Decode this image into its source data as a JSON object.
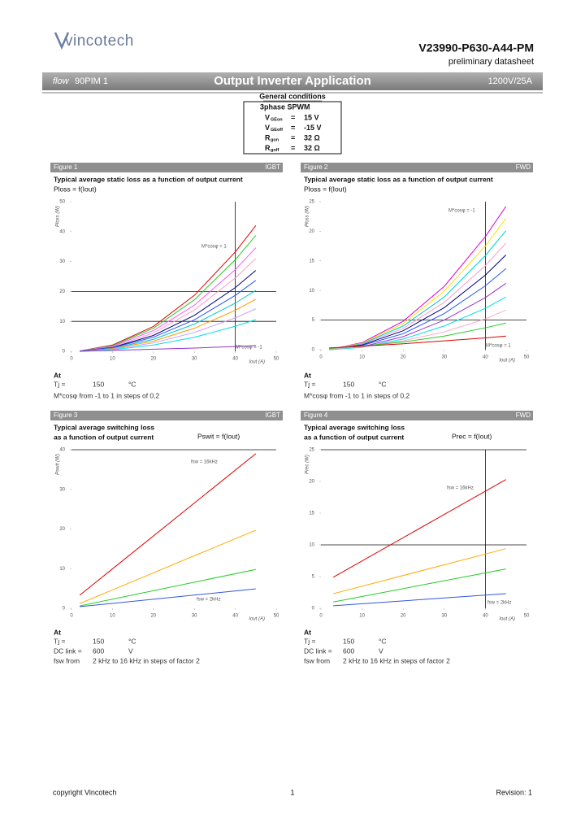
{
  "header": {
    "logo": "vincotech",
    "part_number": "V23990-P630-A44-PM",
    "doc_type": "preliminary datasheet"
  },
  "banner": {
    "family_italic": "flow",
    "family": "90PIM 1",
    "title": "Output Inverter Application",
    "rating": "1200V/25A"
  },
  "conditions": {
    "title": "General conditions",
    "mode": "3phase SPWM",
    "rows": [
      {
        "symbol": "V",
        "sub": "GEon",
        "eq": "=",
        "value": "15 V"
      },
      {
        "symbol": "V",
        "sub": "GEoff",
        "eq": "=",
        "value": "-15 V"
      },
      {
        "symbol": "R",
        "sub": "gon",
        "eq": "=",
        "value": "32 Ω"
      },
      {
        "symbol": "R",
        "sub": "goff",
        "eq": "=",
        "value": "32 Ω"
      }
    ]
  },
  "figures": [
    {
      "label": "Figure 1",
      "device": "IGBT",
      "title": [
        "Typical average static loss as a function of output current"
      ],
      "formula": "Ploss = f(Iout)",
      "chart": {
        "type": "line",
        "ylabel": "Ploss (W)",
        "xlabel": "Iout (A)",
        "xlim": [
          0,
          50
        ],
        "xticks": [
          0,
          10,
          20,
          30,
          40,
          50
        ],
        "ylim": [
          0,
          50
        ],
        "yticks": [
          0,
          10,
          20,
          30,
          40,
          50
        ],
        "vlines": [
          40
        ],
        "hlines": [
          10,
          20
        ],
        "x": [
          2,
          10,
          20,
          30,
          40,
          45
        ],
        "series": [
          {
            "color": "#e00000",
            "values": [
              0.1,
              2.1,
              8.3,
              18.7,
              33.2,
              42
            ]
          },
          {
            "color": "#22cc22",
            "values": [
              0.1,
              1.9,
              7.7,
              17.2,
              30.6,
              38.7
            ]
          },
          {
            "color": "#ff55ff",
            "values": [
              0.1,
              1.7,
              6.9,
              15.4,
              27.3,
              34.6
            ]
          },
          {
            "color": "#ff99cc",
            "values": [
              0.1,
              1.5,
              6.1,
              13.8,
              24.5,
              31
            ]
          },
          {
            "color": "#000080",
            "values": [
              0.1,
              1.3,
              5.3,
              12,
              21.3,
              27
            ]
          },
          {
            "color": "#2255ff",
            "values": [
              0,
              1.2,
              4.7,
              10.5,
              18.7,
              23.7
            ]
          },
          {
            "color": "#00c8c8",
            "values": [
              0,
              1,
              4,
              9.1,
              16.1,
              20.4
            ]
          },
          {
            "color": "#ff9900",
            "values": [
              0,
              0.9,
              3.4,
              7.7,
              13.7,
              17.4
            ]
          },
          {
            "color": "#cc99ff",
            "values": [
              0,
              0.7,
              2.8,
              6.3,
              11.2,
              14.2
            ]
          },
          {
            "color": "#00e0e0",
            "values": [
              0,
              0.5,
              2.1,
              4.7,
              8.4,
              10.6
            ]
          },
          {
            "color": "#9933cc",
            "values": [
              0,
              0.3,
              0.7,
              1.1,
              1.6,
              1.9
            ]
          }
        ],
        "annotations": [
          "M*cosφ = 1",
          "M*cosφ = -1"
        ]
      },
      "at": {
        "title": "At",
        "rows": [
          [
            "Tj =",
            "150",
            "°C"
          ]
        ],
        "note": "M*cosφ from -1 to 1 in steps of 0,2"
      }
    },
    {
      "label": "Figure 2",
      "device": "FWD",
      "title": [
        "Typical average static loss as a function of output current"
      ],
      "formula": "Ploss = f(Iout)",
      "chart": {
        "type": "line",
        "ylabel": "Ploss (W)",
        "xlabel": "Iout (A)",
        "xlim": [
          0,
          50
        ],
        "xticks": [
          0,
          10,
          20,
          30,
          40,
          50
        ],
        "ylim": [
          0,
          25
        ],
        "yticks": [
          0,
          5,
          10,
          15,
          20,
          25
        ],
        "vlines": [
          40
        ],
        "hlines": [
          5
        ],
        "x": [
          2,
          10,
          20,
          30,
          40,
          45
        ],
        "series": [
          {
            "color": "#dd00dd",
            "values": [
              0,
              1.2,
              4.8,
              10.7,
              19.1,
              24.2
            ]
          },
          {
            "color": "#ffdd00",
            "values": [
              0,
              1.1,
              4.4,
              9.9,
              17.5,
              22.2
            ]
          },
          {
            "color": "#00cccc",
            "values": [
              0,
              1,
              4,
              8.9,
              15.9,
              20.1
            ]
          },
          {
            "color": "#ff99cc",
            "values": [
              0,
              0.9,
              3.6,
              8,
              14.2,
              18
            ]
          },
          {
            "color": "#000080",
            "values": [
              0,
              0.8,
              3.2,
              7.1,
              12.6,
              16
            ]
          },
          {
            "color": "#2255ff",
            "values": [
              0,
              0.7,
              2.7,
              6.1,
              10.8,
              13.7
            ]
          },
          {
            "color": "#9933cc",
            "values": [
              0,
              0.5,
              2.2,
              5,
              8.8,
              11.2
            ]
          },
          {
            "color": "#00e0e0",
            "values": [
              0,
              0.4,
              1.8,
              4,
              7,
              8.9
            ]
          },
          {
            "color": "#ffaacc",
            "values": [
              0.1,
              0.5,
              1.5,
              3,
              5.2,
              6.7
            ]
          },
          {
            "color": "#22cc22",
            "values": [
              0.2,
              0.6,
              1.3,
              2.3,
              3.7,
              4.5
            ]
          },
          {
            "color": "#e00000",
            "values": [
              0.3,
              0.6,
              1,
              1.5,
              2,
              2.3
            ]
          }
        ],
        "annotations": [
          "M*cosφ = -1",
          "M*cosφ = 1"
        ]
      },
      "at": {
        "title": "At",
        "rows": [
          [
            "Tj =",
            "150",
            "°C"
          ]
        ],
        "note": "M*cosφ from -1 to 1 in steps of 0,2"
      }
    },
    {
      "label": "Figure 3",
      "device": "IGBT",
      "title": [
        "Typical average switching loss",
        "as a function of output current"
      ],
      "formula": "Pswit = f(Iout)",
      "chart": {
        "type": "line",
        "ylabel": "Pswit (W)",
        "xlabel": "Iout (A)",
        "xlim": [
          0,
          50
        ],
        "xticks": [
          0,
          10,
          20,
          30,
          40,
          50
        ],
        "ylim": [
          0,
          40
        ],
        "yticks": [
          0,
          10,
          20,
          30,
          40
        ],
        "vlines": [],
        "hlines": [
          40
        ],
        "x": [
          2,
          45
        ],
        "series": [
          {
            "color": "#e00000",
            "values": [
              3.3,
              39
            ]
          },
          {
            "color": "#ffaa00",
            "values": [
              1.2,
              19.7
            ]
          },
          {
            "color": "#22cc22",
            "values": [
              0.6,
              9.8
            ]
          },
          {
            "color": "#3355dd",
            "values": [
              0.4,
              4.9
            ]
          }
        ],
        "annotations": [
          "fsw = 16kHz",
          "fsw = 2kHz"
        ]
      },
      "at": {
        "title": "At",
        "rows": [
          [
            "Tj =",
            "150",
            "°C"
          ],
          [
            "DC link =",
            "600",
            "V"
          ],
          [
            "fsw from",
            "2 kHz to 16 kHz in steps of factor 2"
          ]
        ]
      }
    },
    {
      "label": "Figure 4",
      "device": "FWD",
      "title": [
        "Typical average switching loss",
        "as a function of output current"
      ],
      "formula": "Prec = f(Iout)",
      "chart": {
        "type": "line",
        "ylabel": "Prec (W)",
        "xlabel": "Iout (A)",
        "xlim": [
          0,
          50
        ],
        "xticks": [
          0,
          10,
          20,
          30,
          40,
          50
        ],
        "ylim": [
          0,
          25
        ],
        "yticks": [
          0,
          5,
          10,
          15,
          20,
          25
        ],
        "vlines": [
          40
        ],
        "hlines": [
          10,
          25
        ],
        "x": [
          3,
          45
        ],
        "series": [
          {
            "color": "#e00000",
            "values": [
              4.9,
              20.3
            ]
          },
          {
            "color": "#ffaa00",
            "values": [
              2.3,
              9.4
            ]
          },
          {
            "color": "#22cc22",
            "values": [
              1,
              6.2
            ]
          },
          {
            "color": "#3355dd",
            "values": [
              0.4,
              2.3
            ]
          }
        ],
        "annotations": [
          "fsw = 16kHz",
          "fsw = 2kHz"
        ]
      },
      "at": {
        "title": "At",
        "rows": [
          [
            "Tj =",
            "150",
            "°C"
          ],
          [
            "DC link =",
            "600",
            "V"
          ],
          [
            "fsw from",
            "2 kHz to 16 kHz in steps of factor 2"
          ]
        ]
      }
    }
  ],
  "footer": {
    "copyright": "copyright Vincotech",
    "page": "1",
    "revision": "Revision: 1"
  }
}
